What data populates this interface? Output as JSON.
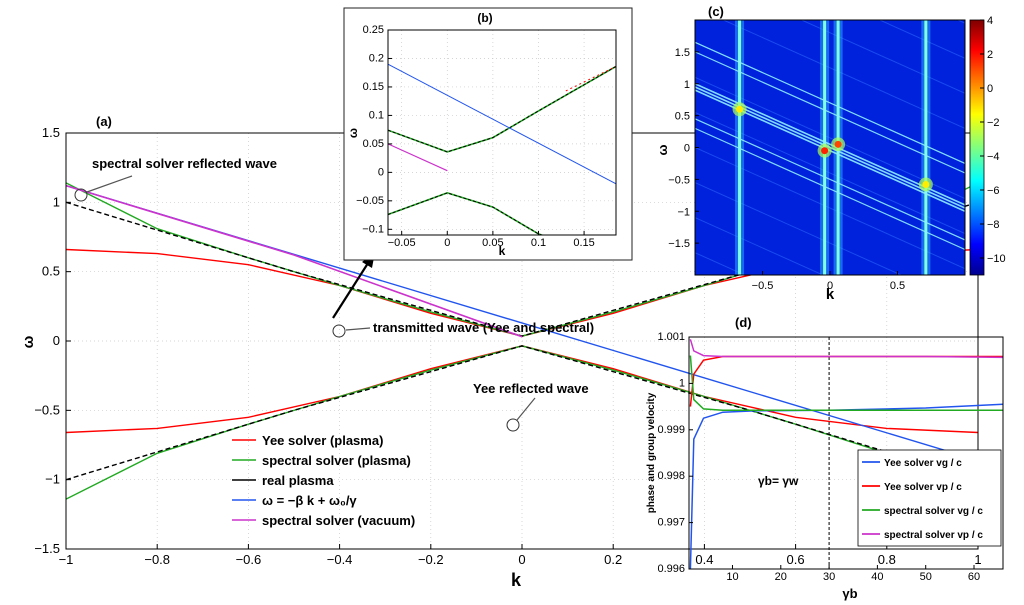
{
  "chart_data": [
    {
      "id": "a",
      "type": "line",
      "panel_label": "(a)",
      "xlabel": "k",
      "ylabel": "ω",
      "xlim": [
        -1,
        1
      ],
      "ylim": [
        -1.5,
        1.5
      ],
      "xticks": [
        "−1",
        "−0.8",
        "−0.6",
        "−0.4",
        "−0.2",
        "0",
        "0.2",
        "0.4",
        "0.6",
        "0.8",
        "1"
      ],
      "yticks": [
        "1.5",
        "1",
        "0.5",
        "0",
        "−0.5",
        "−1",
        "−1.5"
      ],
      "grid": true,
      "series": [
        {
          "name": "Yee solver (plasma)",
          "color": "#ff0000",
          "x": [
            -1,
            -0.8,
            -0.6,
            -0.4,
            -0.2,
            0,
            0.2,
            0.4,
            0.6,
            0.8,
            1
          ],
          "y_upper": [
            0.66,
            0.63,
            0.55,
            0.4,
            0.2,
            0.035,
            0.2,
            0.4,
            0.55,
            0.63,
            0.66
          ]
        },
        {
          "name": "spectral solver (plasma)",
          "color": "#22aa22",
          "x": [
            -1,
            -0.8,
            -0.6,
            -0.4,
            -0.2,
            0,
            0.2,
            0.4,
            0.6,
            0.8,
            1
          ],
          "y_upper": [
            1.14,
            0.81,
            0.6,
            0.4,
            0.21,
            0.035,
            0.21,
            0.4,
            0.6,
            0.81,
            1.14
          ]
        },
        {
          "name": "real plasma",
          "color": "#000000",
          "x": [
            -1,
            -0.5,
            0,
            0.5,
            1
          ],
          "y_upper": [
            1.0,
            0.5,
            0.035,
            0.5,
            1.0
          ]
        },
        {
          "name": "ω = −β k + ω₀/γ",
          "color": "#2255ee",
          "x": [
            -1,
            1
          ],
          "y": [
            1.12,
            -0.86
          ]
        },
        {
          "name": "spectral solver (vacuum)",
          "color": "#cc33cc",
          "x": [
            -1,
            -0.5,
            0
          ],
          "y": [
            1.12,
            0.62,
            0.03
          ]
        }
      ],
      "annotations": [
        "spectral solver reflected wave",
        "transmitted wave (Yee and spectral)",
        "Yee reflected wave"
      ]
    },
    {
      "id": "b",
      "type": "line",
      "panel_label": "(b)",
      "xlabel": "k",
      "ylabel": "ω",
      "xlim": [
        -0.065,
        0.185
      ],
      "ylim": [
        -0.11,
        0.25
      ],
      "xticks": [
        "−0.05",
        "0",
        "0.05",
        "0.1",
        "0.15"
      ],
      "yticks": [
        "0.25",
        "0.2",
        "0.15",
        "0.1",
        "0.05",
        "0",
        "−0.05",
        "−0.1"
      ],
      "series": [
        {
          "name": "plasma dispersion upper",
          "color": "#000000",
          "x": [
            -0.065,
            0,
            0.05,
            0.1,
            0.185
          ],
          "y": [
            0.074,
            0.036,
            0.061,
            0.108,
            0.186
          ]
        },
        {
          "name": "plasma dispersion lower",
          "color": "#000000",
          "x": [
            -0.065,
            0,
            0.05,
            0.1,
            0.13
          ],
          "y": [
            -0.074,
            -0.036,
            -0.061,
            -0.108,
            -0.125
          ]
        },
        {
          "name": "ω = −β k + ω₀/γ",
          "color": "#2255ee",
          "x": [
            -0.065,
            0.185
          ],
          "y": [
            0.19,
            -0.02
          ]
        },
        {
          "name": "spectral solver (vacuum)",
          "color": "#cc33cc",
          "x": [
            -0.065,
            0
          ],
          "y": [
            0.05,
            0.003
          ]
        }
      ]
    },
    {
      "id": "c",
      "type": "heatmap",
      "panel_label": "(c)",
      "xlabel": "k",
      "ylabel": "ω",
      "xlim": [
        -1,
        1
      ],
      "ylim": [
        -2,
        2
      ],
      "xticks": [
        "−0.5",
        "0",
        "0.5"
      ],
      "yticks": [
        "1.5",
        "1",
        "0.5",
        "0",
        "−0.5",
        "−1",
        "−1.5"
      ],
      "colorbar_ticks": [
        "4",
        "2",
        "0",
        "−2",
        "−4",
        "−6",
        "−8",
        "−10"
      ],
      "colorbar_range": [
        -11,
        4
      ]
    },
    {
      "id": "d",
      "type": "line",
      "panel_label": "(d)",
      "xlabel": "γb",
      "ylabel": "phase and group velocity",
      "xlim": [
        1,
        66
      ],
      "ylim": [
        0.996,
        1.001
      ],
      "xticks": [
        "10",
        "20",
        "30",
        "40",
        "50",
        "60"
      ],
      "yticks": [
        "1.001",
        "1",
        "0.999",
        "0.998",
        "0.997",
        "0.996"
      ],
      "vline_label": "γb= γw",
      "vline_x": 30,
      "series": [
        {
          "name": "Yee solver vg / c",
          "color": "#2255ee",
          "x": [
            1.3,
            2,
            4,
            8,
            15,
            30,
            50,
            66
          ],
          "y": [
            0.996,
            0.9988,
            0.99925,
            0.99938,
            0.99941,
            0.99942,
            0.99947,
            0.99955
          ]
        },
        {
          "name": "Yee solver vp / c",
          "color": "#ff0000",
          "x": [
            1.3,
            2,
            4,
            8,
            15,
            30,
            50,
            66
          ],
          "y": [
            0.9995,
            1.0002,
            1.0005,
            1.00058,
            1.00058,
            1.00058,
            1.00058,
            1.00058
          ]
        },
        {
          "name": "spectral solver vg / c",
          "color": "#22aa22",
          "x": [
            1.3,
            2,
            4,
            8,
            15,
            30,
            50,
            66
          ],
          "y": [
            1.0006,
            0.99965,
            0.99945,
            0.99942,
            0.99942,
            0.99942,
            0.99942,
            0.99942
          ]
        },
        {
          "name": "spectral solver vp / c",
          "color": "#cc33cc",
          "x": [
            1.3,
            2,
            4,
            8,
            15,
            30,
            50,
            66
          ],
          "y": [
            1.00095,
            1.0007,
            1.0006,
            1.00058,
            1.00058,
            1.00058,
            1.00058,
            1.00056
          ]
        }
      ]
    }
  ]
}
